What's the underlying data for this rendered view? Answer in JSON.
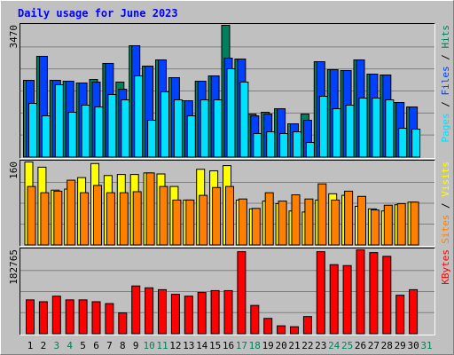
{
  "title": "Daily usage for June 2023",
  "chart_data": [
    {
      "type": "bar",
      "ylim": [
        0,
        3470
      ],
      "yticks": [
        3470
      ],
      "grid_divisions": 6,
      "legend_separator": " / ",
      "series": [
        {
          "name": "Hits",
          "color": "#00805c",
          "values": [
            2026,
            2655,
            2026,
            2003,
            1956,
            2049,
            2469,
            1980,
            2934,
            2399,
            2562,
            2096,
            1490,
            2003,
            2142,
            3470,
            2585,
            1141,
            1188,
            1281,
            885,
            1141,
            2515,
            2306,
            2282,
            2562,
            2189,
            2166,
            1444,
            1327,
            0
          ]
        },
        {
          "name": "Files",
          "color": "#0040ff",
          "values": [
            2026,
            2655,
            2026,
            2003,
            1956,
            1980,
            2469,
            1793,
            2934,
            2399,
            2562,
            2096,
            1490,
            2003,
            2142,
            2608,
            2585,
            1095,
            1141,
            1281,
            885,
            978,
            2515,
            2306,
            2282,
            2562,
            2189,
            2166,
            1444,
            1327,
            0
          ]
        },
        {
          "name": "Pages",
          "color": "#00e0ff",
          "values": [
            1421,
            1095,
            1910,
            1188,
            1374,
            1327,
            1654,
            1514,
            2143,
            978,
            1723,
            1514,
            1095,
            1514,
            1514,
            2329,
            1980,
            629,
            675,
            629,
            675,
            396,
            1607,
            1281,
            1374,
            1560,
            1560,
            1514,
            768,
            745,
            0
          ]
        }
      ]
    },
    {
      "type": "bar",
      "ylim": [
        0,
        160
      ],
      "yticks": [
        160
      ],
      "grid_divisions": 4,
      "legend_separator": " / ",
      "series": [
        {
          "name": "Visits",
          "color": "#ffff00",
          "values": [
            160,
            150,
            106,
            108,
            130,
            157,
            134,
            136,
            136,
            139,
            137,
            113,
            87,
            146,
            143,
            153,
            87,
            70,
            85,
            80,
            66,
            64,
            87,
            99,
            96,
            75,
            70,
            66,
            78,
            83,
            0
          ]
        },
        {
          "name": "Sites",
          "color": "#ff8000",
          "values": [
            113,
            101,
            104,
            125,
            101,
            115,
            101,
            101,
            103,
            139,
            113,
            87,
            87,
            96,
            111,
            113,
            89,
            71,
            101,
            85,
            97,
            89,
            118,
            87,
            104,
            94,
            68,
            77,
            80,
            83,
            0
          ]
        }
      ]
    },
    {
      "type": "bar",
      "ylim": [
        0,
        182765
      ],
      "yticks": [
        182765
      ],
      "grid_divisions": 4,
      "legend_separator": " / ",
      "categories": [
        "1",
        "2",
        "3",
        "4",
        "5",
        "6",
        "7",
        "8",
        "9",
        "10",
        "11",
        "12",
        "13",
        "14",
        "15",
        "16",
        "17",
        "18",
        "19",
        "20",
        "21",
        "22",
        "23",
        "24",
        "25",
        "26",
        "27",
        "28",
        "29",
        "30",
        "31"
      ],
      "highlight_categories": [
        "3",
        "4",
        "10",
        "11",
        "17",
        "18",
        "24",
        "25",
        "31"
      ],
      "highlight_color": "#00805c",
      "series": [
        {
          "name": "KBytes",
          "color": "#ff0000",
          "values": [
            74311,
            70294,
            82344,
            74311,
            74311,
            70294,
            66277,
            46193,
            104437,
            100420,
            96403,
            86361,
            82344,
            90378,
            94395,
            94395,
            178748,
            62260,
            34143,
            18076,
            16067,
            38160,
            178748,
            150630,
            148622,
            182765,
            176739,
            168706,
            84353,
            96403,
            0
          ]
        }
      ]
    }
  ]
}
